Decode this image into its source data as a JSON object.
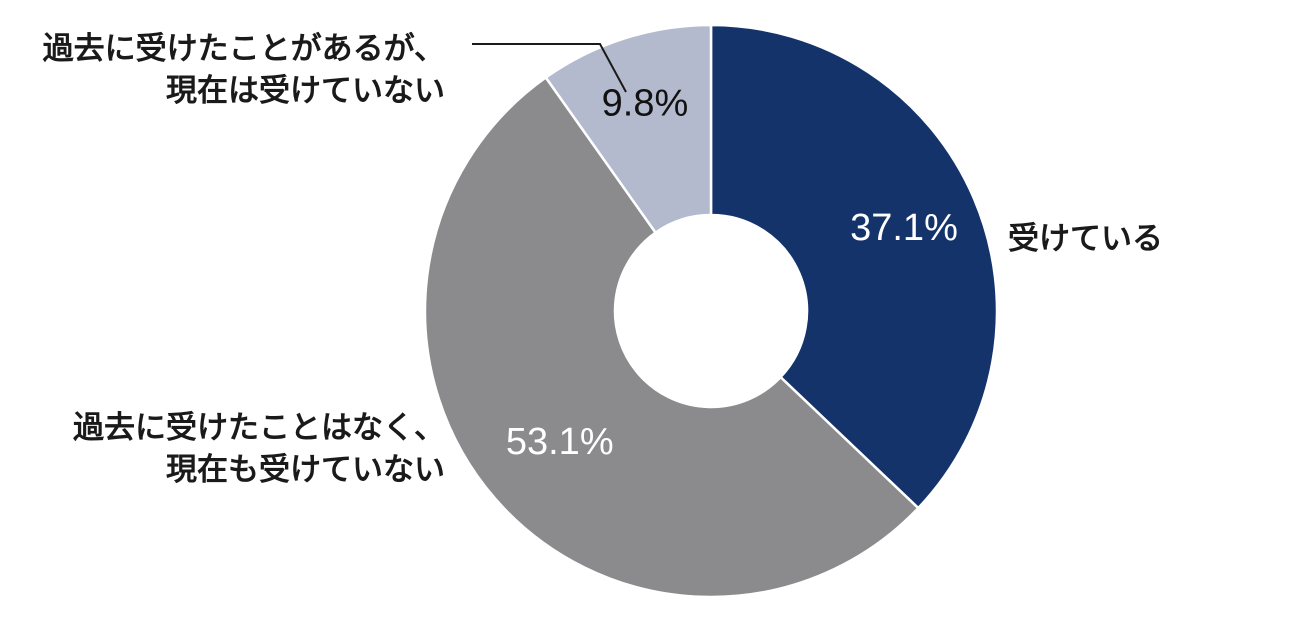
{
  "chart_data": {
    "type": "pie",
    "donut": true,
    "slices": [
      {
        "category_lines": [
          "受けている"
        ],
        "value": 37.1,
        "value_label": "37.1%",
        "color": "#14336b",
        "value_text_color": "#ffffff"
      },
      {
        "category_lines": [
          "過去に受けたことはなく、",
          "現在も受けていない"
        ],
        "value": 53.1,
        "value_label": "53.1%",
        "color": "#8b8a8c",
        "value_text_color": "#ffffff"
      },
      {
        "category_lines": [
          "過去に受けたことがあるが、",
          "現在は受けていない"
        ],
        "value": 9.8,
        "value_label": "9.8%",
        "color": "#b3bace",
        "value_text_color": "#111111"
      }
    ],
    "start_angle": "12 o'clock",
    "direction": "clockwise",
    "legend": "none"
  }
}
